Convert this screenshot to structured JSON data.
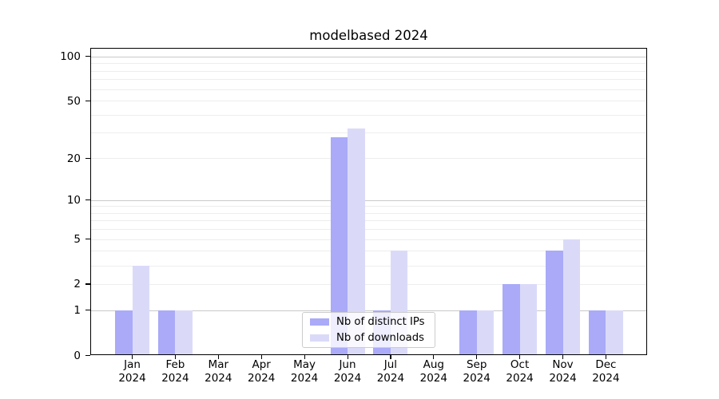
{
  "chart_data": {
    "type": "bar",
    "title": "modelbased 2024",
    "categories": [
      "Jan 2024",
      "Feb 2024",
      "Mar 2024",
      "Apr 2024",
      "May 2024",
      "Jun 2024",
      "Jul 2024",
      "Aug 2024",
      "Sep 2024",
      "Oct 2024",
      "Nov 2024",
      "Dec 2024"
    ],
    "x_tick_month": [
      "Jan",
      "Feb",
      "Mar",
      "Apr",
      "May",
      "Jun",
      "Jul",
      "Aug",
      "Sep",
      "Oct",
      "Nov",
      "Dec"
    ],
    "x_tick_year": "2024",
    "series": [
      {
        "name": "Nb of distinct IPs",
        "color": "#aaaaf8",
        "values": [
          1,
          1,
          0,
          0,
          0,
          28,
          1,
          0,
          1,
          2,
          4,
          1
        ]
      },
      {
        "name": "Nb of downloads",
        "color": "#dadaf8",
        "values": [
          3,
          1,
          0,
          0,
          0,
          32,
          4,
          0,
          1,
          2,
          5,
          1
        ]
      }
    ],
    "yscale": "log1p",
    "ylim": [
      0,
      114
    ],
    "y_tick_labels": [
      0,
      1,
      2,
      5,
      10,
      20,
      50,
      100
    ],
    "y_major_gridlines": [
      1,
      10,
      100
    ],
    "y_minor_gridlines": [
      2,
      3,
      4,
      5,
      6,
      7,
      8,
      9,
      20,
      30,
      40,
      50,
      60,
      70,
      80,
      90
    ],
    "grid": "horizontal",
    "legend_position": "lower center",
    "xlabel": "",
    "ylabel": ""
  },
  "colors": {
    "bar_distinct_ips": "#aaaaf8",
    "bar_downloads": "#dadaf8",
    "grid_major": "#c9c9c9",
    "grid_minor": "#ededed",
    "spine": "#000000",
    "text": "#000000",
    "legend_border": "#cccccc"
  },
  "legend": {
    "items": [
      {
        "label": "Nb of distinct IPs"
      },
      {
        "label": "Nb of downloads"
      }
    ]
  }
}
